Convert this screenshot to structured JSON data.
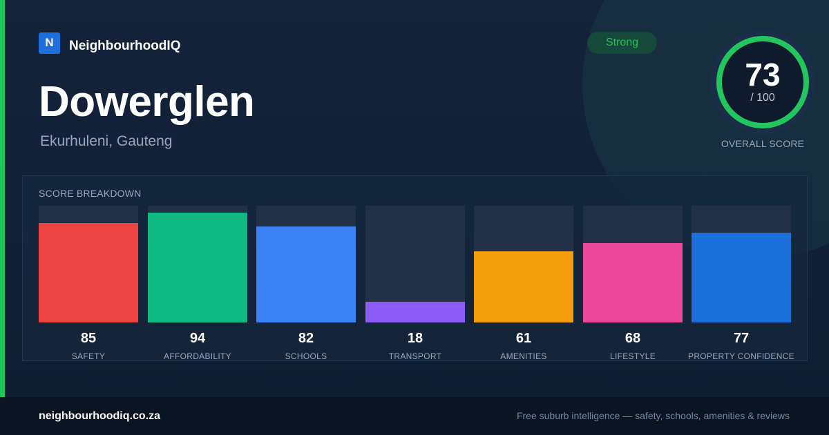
{
  "brand": {
    "logo_letter": "N",
    "name": "NeighbourhoodIQ"
  },
  "suburb": {
    "name": "Dowerglen",
    "location": "Ekurhuleni, Gauteng"
  },
  "rating_badge": "Strong",
  "overall": {
    "score": "73",
    "max": "/ 100",
    "caption": "OVERALL SCORE",
    "fraction": 0.73
  },
  "colors": {
    "accent": "#22c55e",
    "ring_track": "#0f1b2d"
  },
  "breakdown": {
    "title": "SCORE BREAKDOWN",
    "items": [
      {
        "label": "SAFETY",
        "value": 85,
        "color": "#ef4444"
      },
      {
        "label": "AFFORDABILITY",
        "value": 94,
        "color": "#10b981"
      },
      {
        "label": "SCHOOLS",
        "value": 82,
        "color": "#3b82f6"
      },
      {
        "label": "TRANSPORT",
        "value": 18,
        "color": "#8b5cf6"
      },
      {
        "label": "AMENITIES",
        "value": 61,
        "color": "#f59e0b"
      },
      {
        "label": "LIFESTYLE",
        "value": 68,
        "color": "#ec4899"
      },
      {
        "label": "PROPERTY CONFIDENCE",
        "value": 77,
        "color": "#1d6fdc"
      }
    ]
  },
  "footer": {
    "domain": "neighbourhoodiq.co.za",
    "tagline": "Free suburb intelligence — safety, schools, amenities & reviews"
  }
}
